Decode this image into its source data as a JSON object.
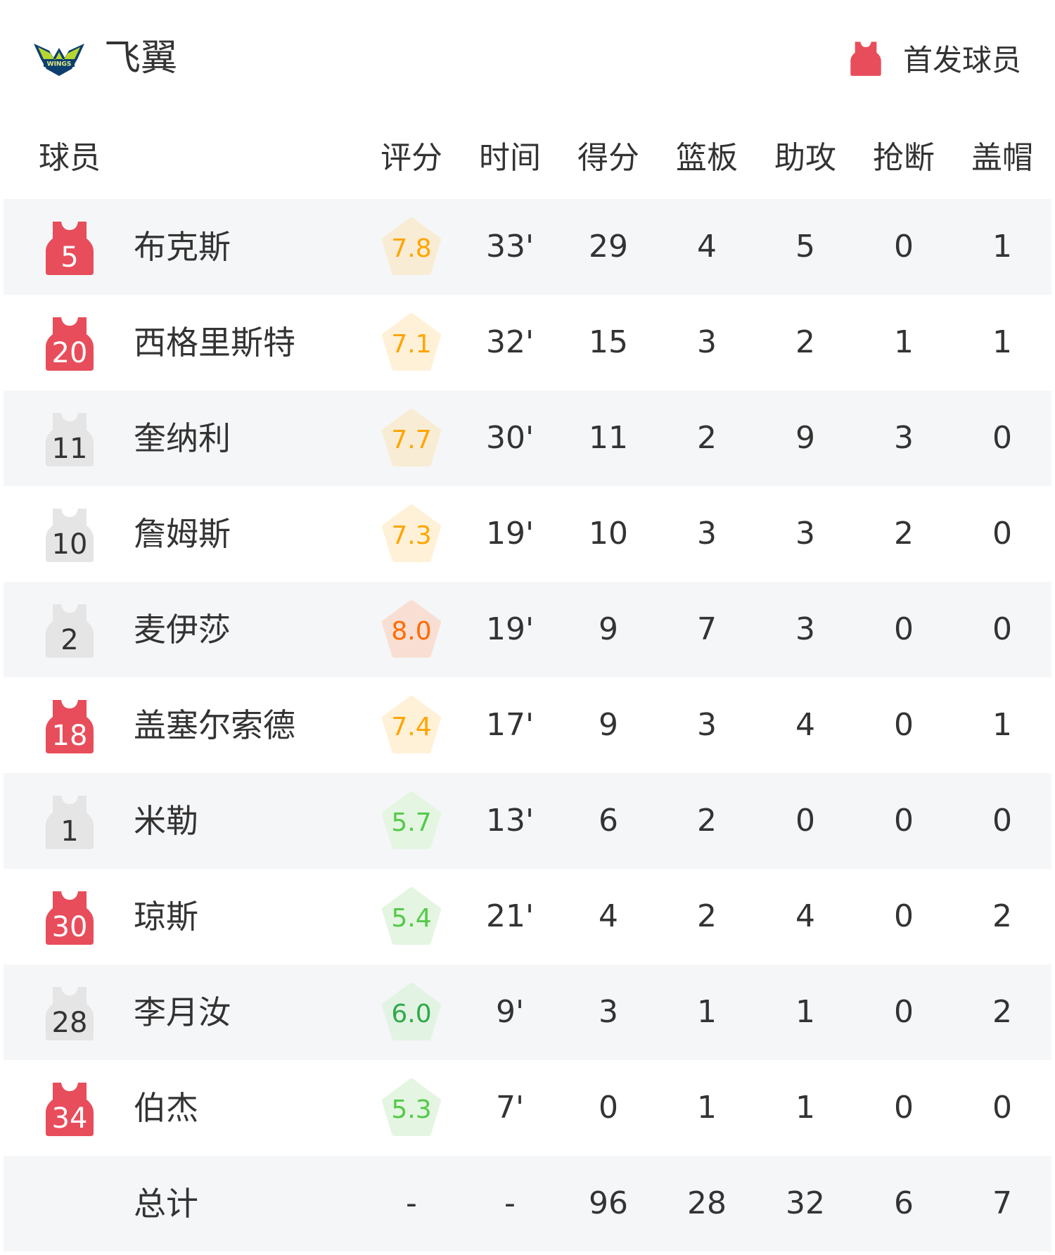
{
  "header": {
    "team_name": "飞翼",
    "logo_text": "WINGS",
    "legend_label": "首发球员"
  },
  "colors": {
    "starter": "#e84d5b",
    "bench": "#e5e5e5",
    "row_alt": "#f5f6f8"
  },
  "columns": [
    "球员",
    "评分",
    "时间",
    "得分",
    "篮板",
    "助攻",
    "抢断",
    "盖帽"
  ],
  "players": [
    {
      "number": "5",
      "name": "布克斯",
      "starter": true,
      "rating": "7.8",
      "time": "33'",
      "pts": "29",
      "reb": "4",
      "ast": "5",
      "stl": "0",
      "blk": "1"
    },
    {
      "number": "20",
      "name": "西格里斯特",
      "starter": true,
      "rating": "7.1",
      "time": "32'",
      "pts": "15",
      "reb": "3",
      "ast": "2",
      "stl": "1",
      "blk": "1"
    },
    {
      "number": "11",
      "name": "奎纳利",
      "starter": false,
      "rating": "7.7",
      "time": "30'",
      "pts": "11",
      "reb": "2",
      "ast": "9",
      "stl": "3",
      "blk": "0"
    },
    {
      "number": "10",
      "name": "詹姆斯",
      "starter": false,
      "rating": "7.3",
      "time": "19'",
      "pts": "10",
      "reb": "3",
      "ast": "3",
      "stl": "2",
      "blk": "0"
    },
    {
      "number": "2",
      "name": "麦伊莎",
      "starter": false,
      "rating": "8.0",
      "time": "19'",
      "pts": "9",
      "reb": "7",
      "ast": "3",
      "stl": "0",
      "blk": "0"
    },
    {
      "number": "18",
      "name": "盖塞尔索德",
      "starter": true,
      "rating": "7.4",
      "time": "17'",
      "pts": "9",
      "reb": "3",
      "ast": "4",
      "stl": "0",
      "blk": "1"
    },
    {
      "number": "1",
      "name": "米勒",
      "starter": false,
      "rating": "5.7",
      "time": "13'",
      "pts": "6",
      "reb": "2",
      "ast": "0",
      "stl": "0",
      "blk": "0"
    },
    {
      "number": "30",
      "name": "琼斯",
      "starter": true,
      "rating": "5.4",
      "time": "21'",
      "pts": "4",
      "reb": "2",
      "ast": "4",
      "stl": "0",
      "blk": "2"
    },
    {
      "number": "28",
      "name": "李月汝",
      "starter": false,
      "rating": "6.0",
      "time": "9'",
      "pts": "3",
      "reb": "1",
      "ast": "1",
      "stl": "0",
      "blk": "2"
    },
    {
      "number": "34",
      "name": "伯杰",
      "starter": true,
      "rating": "5.3",
      "time": "7'",
      "pts": "0",
      "reb": "1",
      "ast": "1",
      "stl": "0",
      "blk": "0"
    }
  ],
  "totals": {
    "label": "总计",
    "rating": "-",
    "time": "-",
    "pts": "96",
    "reb": "28",
    "ast": "32",
    "stl": "6",
    "blk": "7"
  }
}
